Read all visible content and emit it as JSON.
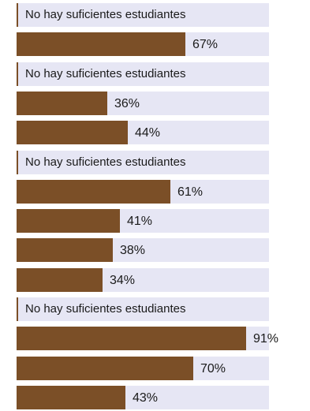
{
  "chart_data": {
    "type": "bar",
    "orientation": "horizontal",
    "xlim": [
      0,
      100
    ],
    "unit": "%",
    "rows": [
      {
        "kind": "notice",
        "text": "No hay suficientes estudiantes"
      },
      {
        "kind": "bar",
        "value": 67,
        "label": "67%"
      },
      {
        "kind": "notice",
        "text": "No hay suficientes estudiantes"
      },
      {
        "kind": "bar",
        "value": 36,
        "label": "36%"
      },
      {
        "kind": "bar",
        "value": 44,
        "label": "44%"
      },
      {
        "kind": "notice",
        "text": "No hay suficientes estudiantes"
      },
      {
        "kind": "bar",
        "value": 61,
        "label": "61%"
      },
      {
        "kind": "bar",
        "value": 41,
        "label": "41%"
      },
      {
        "kind": "bar",
        "value": 38,
        "label": "38%"
      },
      {
        "kind": "bar",
        "value": 34,
        "label": "34%"
      },
      {
        "kind": "notice",
        "text": "No hay suficientes estudiantes"
      },
      {
        "kind": "bar",
        "value": 91,
        "label": "91%"
      },
      {
        "kind": "bar",
        "value": 70,
        "label": "70%"
      },
      {
        "kind": "bar",
        "value": 43,
        "label": "43%"
      }
    ],
    "colors": {
      "bar": "#7b4f27",
      "track": "#e6e6f4",
      "text": "#1a1a1a"
    }
  }
}
